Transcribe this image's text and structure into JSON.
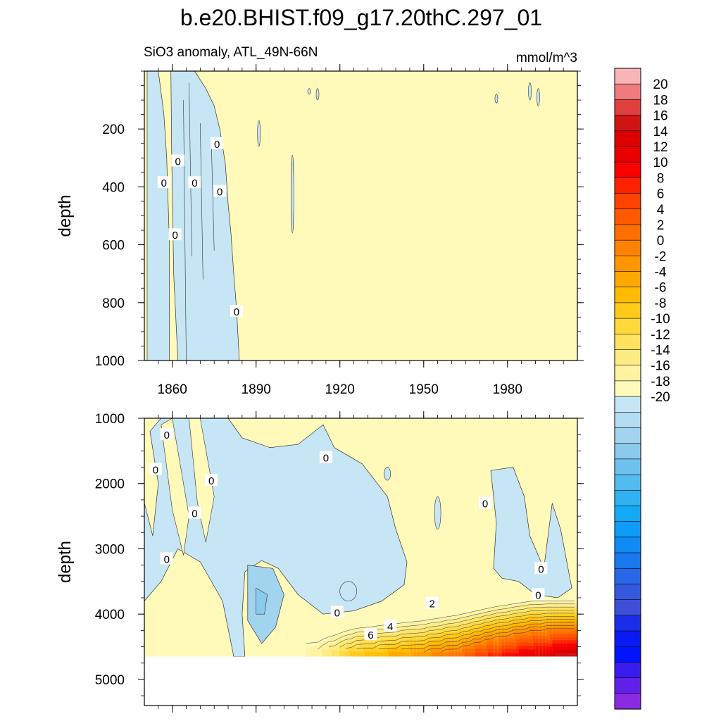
{
  "title": "b.e20.BHIST.f09_g17.20thC.297_01",
  "subtitle_left": "SiO3 anomaly, ATL_49N-66N",
  "subtitle_right": "mmol/m^3",
  "chart_data": [
    {
      "type": "heatmap",
      "panel": "upper",
      "ylabel": "depth",
      "xlabel": "",
      "x_ticks": [
        1860,
        1890,
        1920,
        1950,
        1980
      ],
      "x_tick_labels": [
        "1860",
        "1890",
        "1920",
        "1950",
        "1980"
      ],
      "xlim": [
        1850,
        2005
      ],
      "y_ticks": [
        200,
        400,
        600,
        800,
        1000
      ],
      "y_tick_labels": [
        "200",
        "400",
        "600",
        "800",
        "1000"
      ],
      "ylim": [
        0,
        1000
      ],
      "y_inverted": true,
      "background_level": "0 to 1",
      "negative_regions": [
        {
          "years": [
            1851,
            1859
          ],
          "depth": [
            0,
            1000
          ],
          "value": -0.5
        },
        {
          "years": [
            1859,
            1884
          ],
          "depth": [
            0,
            1000
          ],
          "value": -0.5
        }
      ],
      "contour_labels": [
        {
          "text": "0",
          "year": 1862,
          "depth": 310
        },
        {
          "text": "0",
          "year": 1857,
          "depth": 385
        },
        {
          "text": "0",
          "year": 1868,
          "depth": 385
        },
        {
          "text": "0",
          "year": 1876,
          "depth": 250
        },
        {
          "text": "0",
          "year": 1877,
          "depth": 415
        },
        {
          "text": "0",
          "year": 1861,
          "depth": 565
        },
        {
          "text": "0",
          "year": 1883,
          "depth": 830
        }
      ]
    },
    {
      "type": "heatmap",
      "panel": "lower",
      "ylabel": "depth",
      "xlabel": "",
      "ylim": [
        1000,
        5400
      ],
      "y_ticks": [
        1000,
        2000,
        3000,
        4000,
        5000
      ],
      "y_tick_labels": [
        "1000",
        "2000",
        "3000",
        "4000",
        "5000"
      ],
      "y_inverted": true,
      "data_bottom_depth": 4650,
      "bottom_layer": {
        "years": [
          1850,
          1875,
          1900,
          1912,
          1925,
          1950,
          1962,
          1975,
          1987,
          2000,
          2005
        ],
        "value_near_4500m": [
          0,
          0,
          0,
          2,
          6,
          9,
          11,
          14,
          16,
          18,
          18
        ]
      },
      "negative_regions": [
        {
          "years": [
            1865,
            1945
          ],
          "depth": [
            1000,
            4050
          ],
          "value": -0.5
        },
        {
          "years": [
            1887,
            1898
          ],
          "depth": [
            3200,
            4500
          ],
          "value": -2.5
        },
        {
          "years": [
            1974,
            1993
          ],
          "depth": [
            1700,
            3700
          ],
          "value": -0.5
        }
      ],
      "contour_labels": [
        {
          "text": "0",
          "year": 1858,
          "depth": 1250
        },
        {
          "text": "0",
          "year": 1854,
          "depth": 1780
        },
        {
          "text": "0",
          "year": 1874,
          "depth": 1950
        },
        {
          "text": "0",
          "year": 1868,
          "depth": 2450
        },
        {
          "text": "0",
          "year": 1858,
          "depth": 3150
        },
        {
          "text": "0",
          "year": 1915,
          "depth": 1600
        },
        {
          "text": "0",
          "year": 1972,
          "depth": 2300
        },
        {
          "text": "0",
          "year": 1992,
          "depth": 3300
        },
        {
          "text": "0",
          "year": 1991,
          "depth": 3700
        },
        {
          "text": "0",
          "year": 1919,
          "depth": 3970
        },
        {
          "text": "2",
          "year": 1953,
          "depth": 3830
        },
        {
          "text": "4",
          "year": 1938,
          "depth": 4180
        },
        {
          "text": "6",
          "year": 1931,
          "depth": 4310
        }
      ]
    }
  ],
  "colorbar": {
    "labels": [
      "20",
      "18",
      "16",
      "14",
      "12",
      "10",
      "8",
      "6",
      "4",
      "2",
      "0",
      "-2",
      "-4",
      "-6",
      "-8",
      "-10",
      "-12",
      "-14",
      "-16",
      "-18",
      "-20"
    ],
    "colors_top_to_bottom": [
      "#f8b4b6",
      "#f07b7e",
      "#e04040",
      "#cf1414",
      "#dd0000",
      "#ea0000",
      "#fa0000",
      "#ff2200",
      "#ff4400",
      "#ff5a00",
      "#ff6e00",
      "#ff8200",
      "#ff9600",
      "#ffa800",
      "#ffbb00",
      "#ffcb1a",
      "#ffd83c",
      "#ffe35e",
      "#fdeb84",
      "#fff3a2",
      "#fffaba",
      "#c6e5f5",
      "#b4dcf2",
      "#a2d3ef",
      "#8ccaec",
      "#6ec3ee",
      "#52bbf0",
      "#30b2f2",
      "#12aaf5",
      "#0f9cf8",
      "#108af5",
      "#1a78f0",
      "#2868e8",
      "#3458df",
      "#3f4fd8",
      "#1a2ee8",
      "#0a1af5",
      "#0014ff",
      "#3b1cf0",
      "#6220eb",
      "#8a2be2"
    ]
  }
}
